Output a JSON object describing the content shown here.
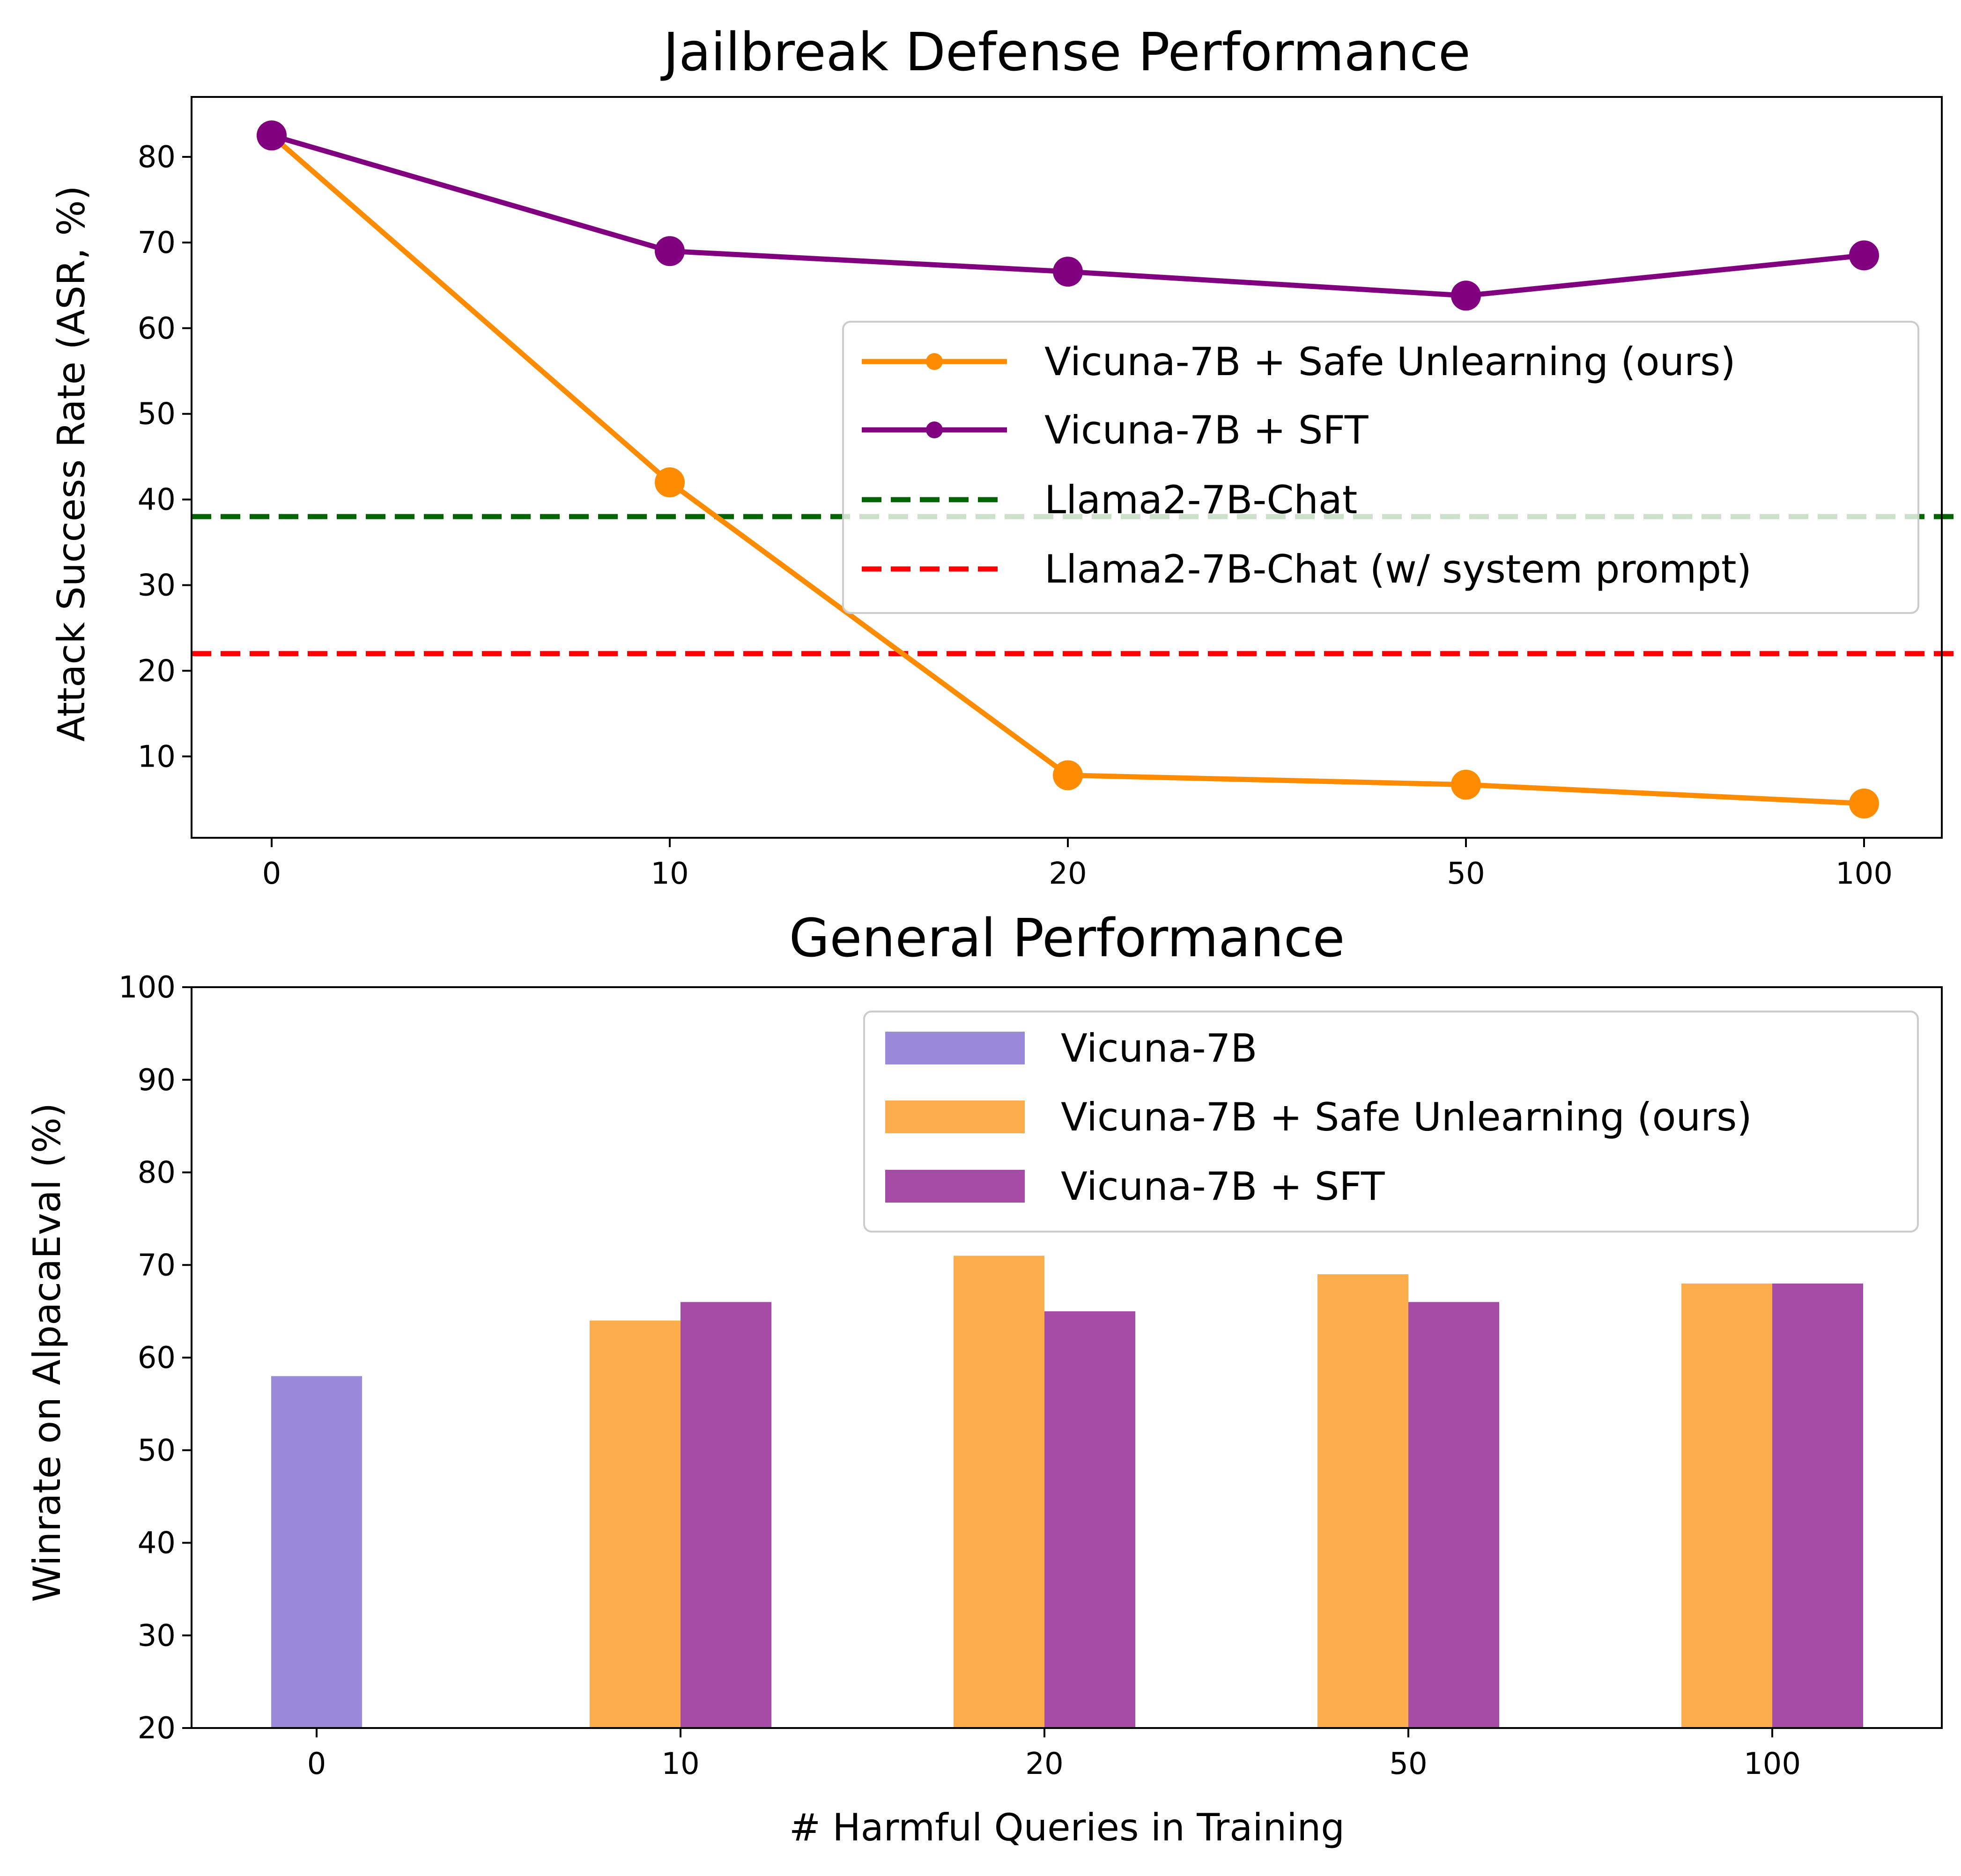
{
  "chart_data": [
    {
      "type": "line",
      "title": "Jailbreak Defense Performance",
      "xlabel": "",
      "ylabel": "Attack Success Rate (ASR, %)",
      "categories": [
        "0",
        "10",
        "20",
        "50",
        "100"
      ],
      "yticks": [
        10,
        20,
        30,
        40,
        50,
        60,
        70,
        80
      ],
      "ylim": [
        0.5,
        87
      ],
      "series": [
        {
          "name": "Vicuna-7B + Safe Unlearning (ours)",
          "color": "#ff8c00",
          "style": "line-marker",
          "values": [
            82.5,
            42,
            7.8,
            6.7,
            4.5
          ]
        },
        {
          "name": "Vicuna-7B + SFT",
          "color": "#800080",
          "style": "line-marker",
          "values": [
            82.5,
            69,
            66.6,
            63.8,
            68.5
          ]
        }
      ],
      "reference_lines": [
        {
          "name": "Llama2-7B-Chat",
          "color": "#006400",
          "style": "dashed",
          "value": 38
        },
        {
          "name": "Llama2-7B-Chat (w/ system prompt)",
          "color": "#ff0000",
          "style": "dashed",
          "value": 22
        }
      ],
      "legend_position": "center-right",
      "grid": false
    },
    {
      "type": "bar",
      "title": "General Performance",
      "xlabel": "# Harmful Queries in Training",
      "ylabel": "Winrate on AlpacaEval (%)",
      "categories": [
        "0",
        "10",
        "20",
        "50",
        "100"
      ],
      "yticks": [
        20,
        30,
        40,
        50,
        60,
        70,
        80,
        90,
        100
      ],
      "ylim": [
        20,
        100
      ],
      "series": [
        {
          "name": "Vicuna-7B",
          "color": "#9a8ad9",
          "values": [
            58,
            null,
            null,
            null,
            null
          ]
        },
        {
          "name": "Vicuna-7B + Safe Unlearning (ours)",
          "color": "#fdad4c",
          "values": [
            null,
            64,
            71,
            69,
            68
          ]
        },
        {
          "name": "Vicuna-7B + SFT",
          "color": "#a64ca6",
          "values": [
            null,
            66,
            65,
            66,
            68
          ]
        }
      ],
      "legend_position": "top-right",
      "grid": false
    }
  ]
}
